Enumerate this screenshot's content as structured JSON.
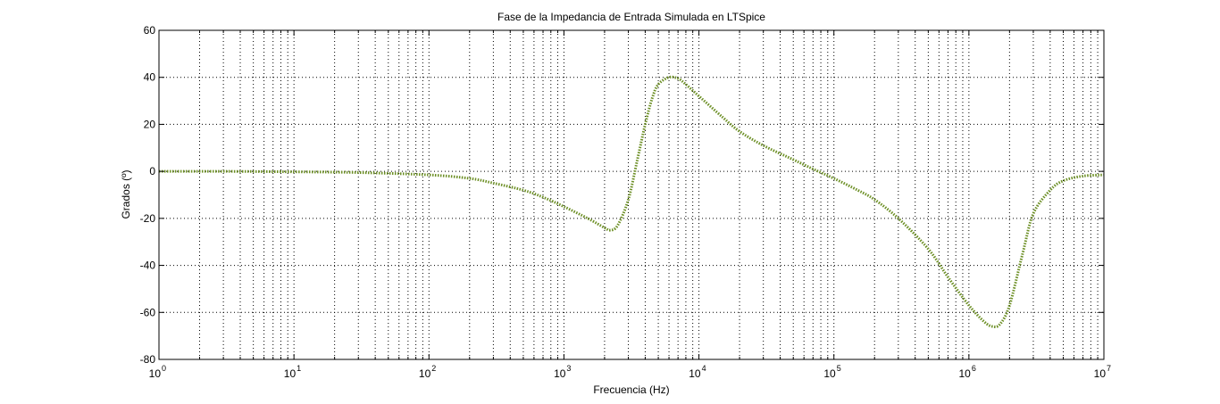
{
  "window": {
    "background": "#ffffff"
  },
  "chart_data": {
    "type": "line",
    "title": "Fase de la Impedancia de Entrada Simulada en LTSpice",
    "xlabel": "Frecuencia (Hz)",
    "ylabel": "Grados (º)",
    "xscale": "log",
    "xlim": [
      1,
      10000000
    ],
    "ylim": [
      -80,
      60
    ],
    "xticks": [
      1,
      10,
      100,
      1000,
      10000,
      100000,
      1000000,
      10000000
    ],
    "xtick_labels": [
      {
        "base": "10",
        "exp": "0"
      },
      {
        "base": "10",
        "exp": "1"
      },
      {
        "base": "10",
        "exp": "2"
      },
      {
        "base": "10",
        "exp": "3"
      },
      {
        "base": "10",
        "exp": "4"
      },
      {
        "base": "10",
        "exp": "5"
      },
      {
        "base": "10",
        "exp": "6"
      },
      {
        "base": "10",
        "exp": "7"
      }
    ],
    "yticks": [
      60,
      40,
      20,
      0,
      -20,
      -40,
      -60,
      -80
    ],
    "ytick_labels": [
      "60",
      "40",
      "20",
      "0",
      "-20",
      "-40",
      "-60",
      "-80"
    ],
    "grid": true,
    "grid_style": "dotted",
    "legend": false,
    "series": [
      {
        "color": "#6b8e23",
        "line_style": "dotted",
        "x": [
          1,
          3,
          10,
          30,
          100,
          200,
          300,
          500,
          700,
          1000,
          1500,
          2000,
          2200,
          2500,
          3000,
          3500,
          4000,
          4500,
          5000,
          6000,
          7000,
          8000,
          10000,
          15000,
          20000,
          30000,
          50000,
          70000,
          100000,
          150000,
          200000,
          300000,
          500000,
          700000,
          1000000,
          1300000,
          1500000,
          1700000,
          2000000,
          2500000,
          3000000,
          4000000,
          5000000,
          7000000,
          10000000
        ],
        "y": [
          0,
          0,
          -0.2,
          -0.5,
          -1.5,
          -3,
          -5,
          -8,
          -11,
          -15,
          -20,
          -24,
          -25,
          -23,
          -12,
          5,
          20,
          31,
          37,
          40,
          39.5,
          37,
          32,
          23,
          17,
          11,
          5,
          1,
          -3,
          -8,
          -12,
          -20,
          -33,
          -45,
          -57,
          -64,
          -66,
          -65,
          -57,
          -35,
          -18,
          -8,
          -4,
          -2,
          -1.5
        ]
      }
    ]
  }
}
